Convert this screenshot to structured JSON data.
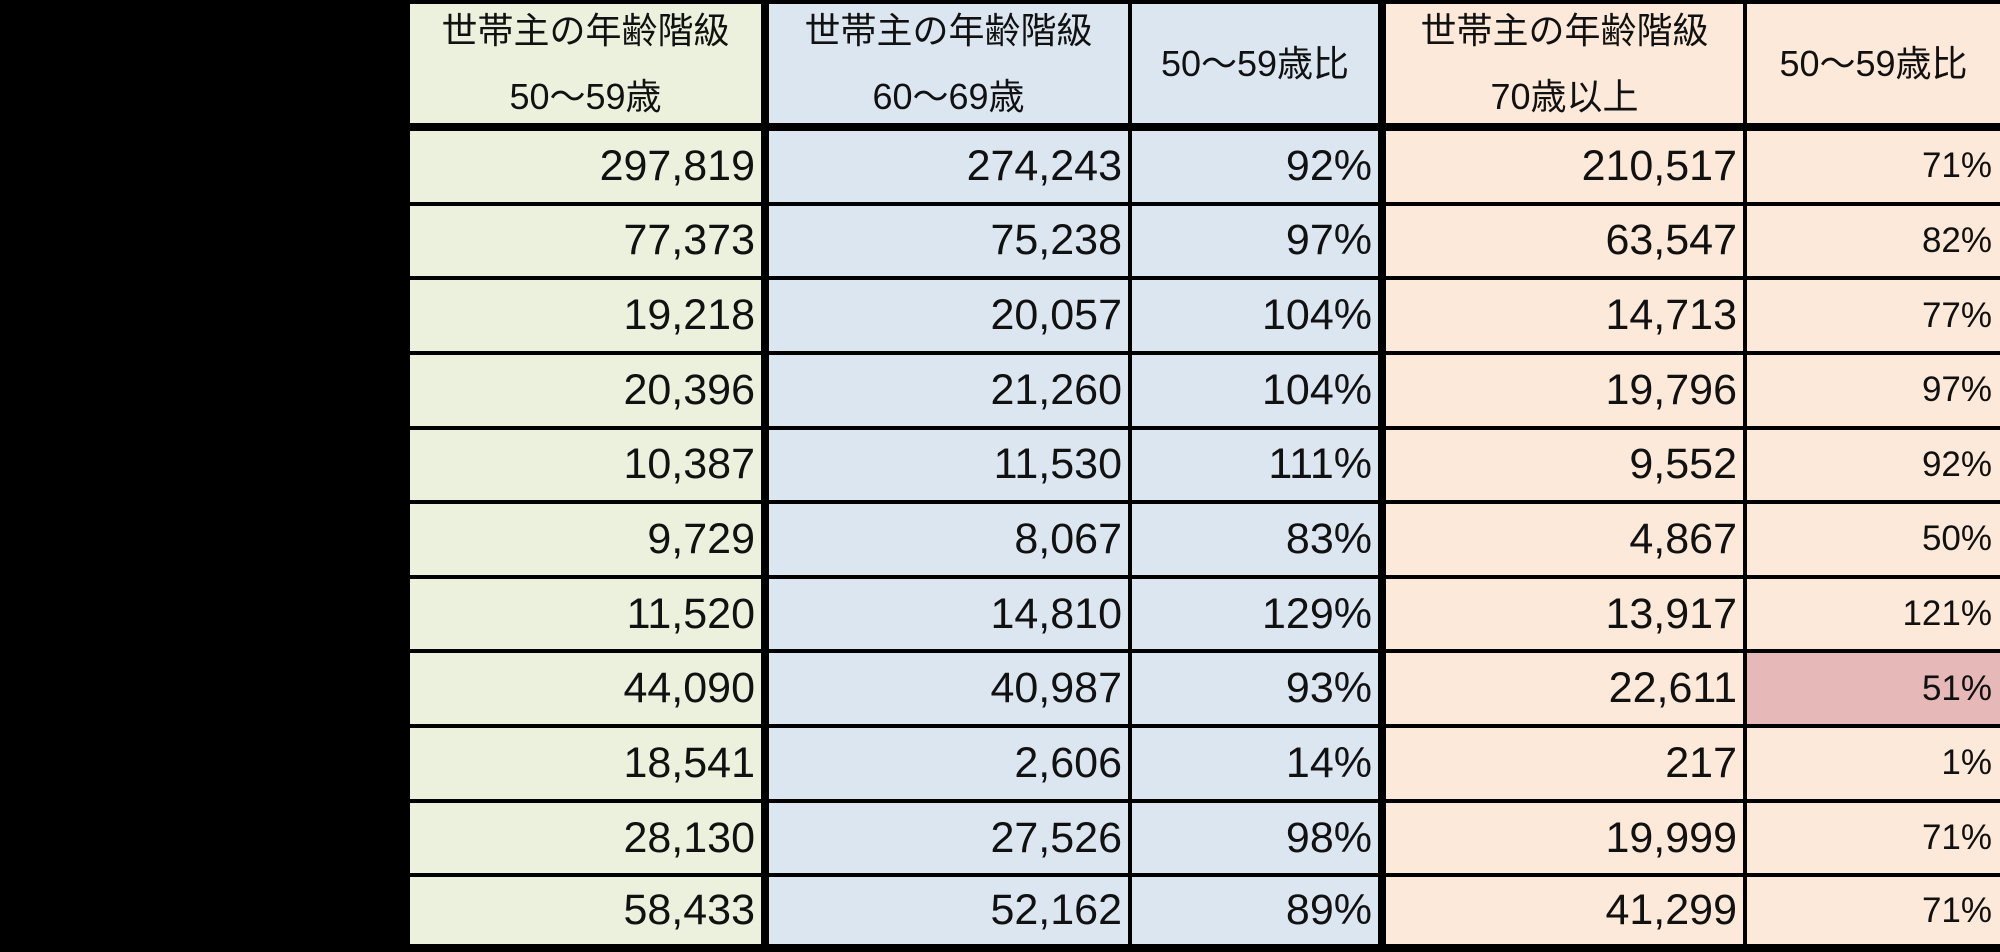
{
  "chart_data": {
    "type": "table",
    "title": "",
    "columns": [
      {
        "line1": "世帯主の年齢階級",
        "line2": "50〜59歳"
      },
      {
        "line1": "世帯主の年齢階級",
        "line2": "60〜69歳"
      },
      {
        "line1": "50〜59歳比",
        "line2": ""
      },
      {
        "line1": "世帯主の年齢階級",
        "line2": "70歳以上"
      },
      {
        "line1": "50〜59歳比",
        "line2": ""
      }
    ],
    "rows": [
      [
        "297,819",
        "274,243",
        "92%",
        "210,517",
        "71%"
      ],
      [
        "77,373",
        "75,238",
        "97%",
        "63,547",
        "82%"
      ],
      [
        "19,218",
        "20,057",
        "104%",
        "14,713",
        "77%"
      ],
      [
        "20,396",
        "21,260",
        "104%",
        "19,796",
        "97%"
      ],
      [
        "10,387",
        "11,530",
        "111%",
        "9,552",
        "92%"
      ],
      [
        "9,729",
        "8,067",
        "83%",
        "4,867",
        "50%"
      ],
      [
        "11,520",
        "14,810",
        "129%",
        "13,917",
        "121%"
      ],
      [
        "44,090",
        "40,987",
        "93%",
        "22,611",
        "51%"
      ],
      [
        "18,541",
        "2,606",
        "14%",
        "217",
        "1%"
      ],
      [
        "28,130",
        "27,526",
        "98%",
        "19,999",
        "71%"
      ],
      [
        "58,433",
        "52,162",
        "89%",
        "41,299",
        "71%"
      ]
    ],
    "highlight_cell": {
      "row_index": 7,
      "col_index": 4,
      "value": "51%"
    },
    "layout": {
      "legend": "none",
      "grid": "all-borders"
    }
  },
  "colors": {
    "page_background": "#000000",
    "col_50_59_bg": "#ECF1DE",
    "col_60_69_bg": "#DCE6F1",
    "ratio_60_69_bg": "#DCE6F1",
    "col_70_plus_bg": "#FDE9D9",
    "ratio_70_plus_bg": "#FDE9D9",
    "highlight_bg": "#E6B8B7",
    "border": "#000000",
    "text": "#111111"
  }
}
